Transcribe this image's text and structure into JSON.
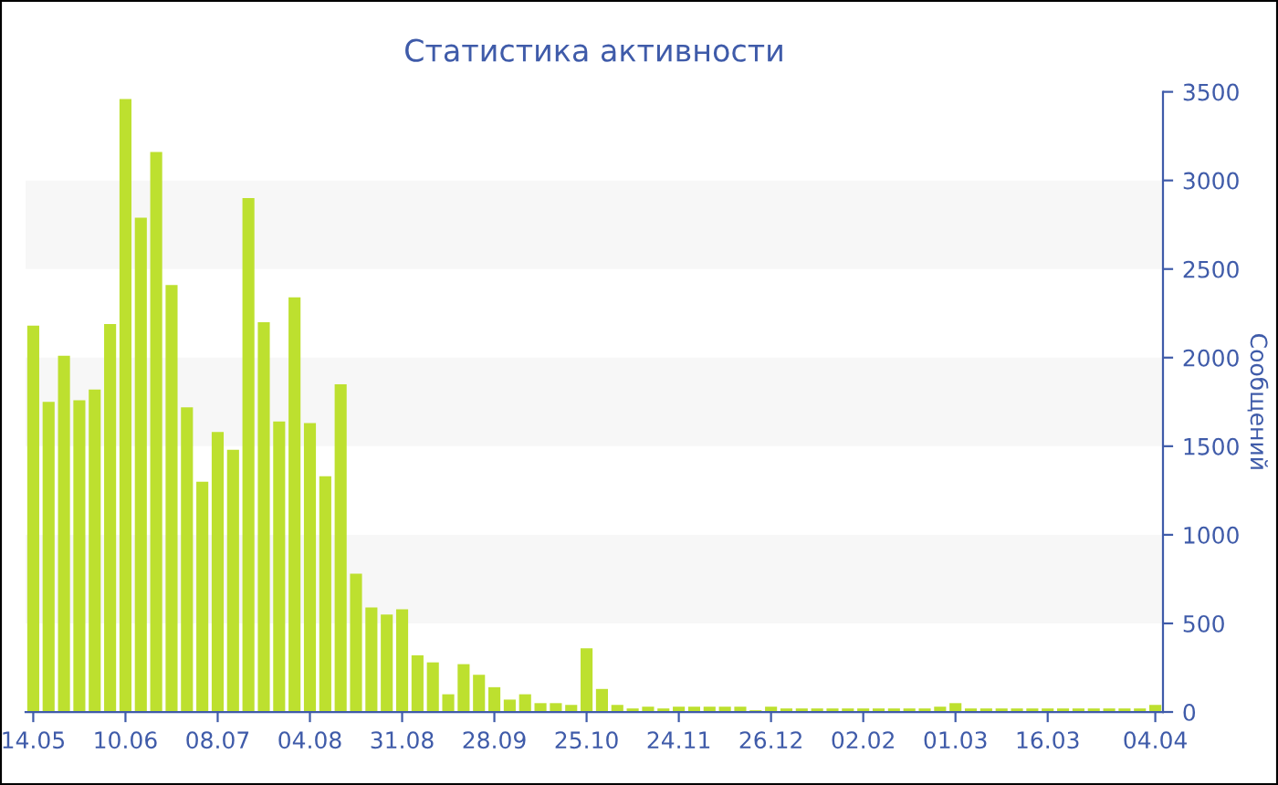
{
  "chart_data": {
    "type": "bar",
    "title": "Статистика активности",
    "ylabel": "Сообщений",
    "categories": [
      "14.05",
      null,
      null,
      null,
      null,
      null,
      "10.06",
      null,
      null,
      null,
      null,
      null,
      "08.07",
      null,
      null,
      null,
      null,
      null,
      "04.08",
      null,
      null,
      null,
      null,
      null,
      "31.08",
      null,
      null,
      null,
      null,
      null,
      "28.09",
      null,
      null,
      null,
      null,
      null,
      "25.10",
      null,
      null,
      null,
      null,
      null,
      "24.11",
      null,
      null,
      null,
      null,
      null,
      "26.12",
      null,
      null,
      null,
      null,
      null,
      "02.02",
      null,
      null,
      null,
      null,
      null,
      "01.03",
      null,
      null,
      null,
      null,
      null,
      "16.03",
      null,
      null,
      null,
      null,
      null,
      null,
      "04.04"
    ],
    "values": [
      2180,
      1750,
      2010,
      1760,
      1820,
      2190,
      3460,
      2790,
      3160,
      2410,
      1720,
      1300,
      1580,
      1480,
      2900,
      2200,
      1640,
      2340,
      1630,
      1330,
      1850,
      780,
      590,
      550,
      580,
      320,
      280,
      100,
      270,
      210,
      140,
      70,
      100,
      50,
      50,
      40,
      360,
      130,
      40,
      20,
      30,
      20,
      30,
      30,
      30,
      30,
      30,
      10,
      30,
      20,
      20,
      20,
      20,
      20,
      20,
      20,
      20,
      20,
      20,
      30,
      50,
      20,
      20,
      20,
      20,
      20,
      20,
      20,
      20,
      20,
      20,
      20,
      20,
      40
    ],
    "color": "#bde02f",
    "ylim": [
      0,
      3500
    ],
    "yticks": [
      0,
      500,
      1000,
      1500,
      2000,
      2500,
      3000,
      3500
    ],
    "bands": [
      {
        "axis": "y",
        "from": 500,
        "to": 1000,
        "color": "#f7f7f7"
      },
      {
        "axis": "y",
        "from": 1500,
        "to": 2000,
        "color": "#f7f7f7"
      },
      {
        "axis": "y",
        "from": 2500,
        "to": 3000,
        "color": "#f7f7f7"
      }
    ],
    "grid": false,
    "legend": false
  }
}
